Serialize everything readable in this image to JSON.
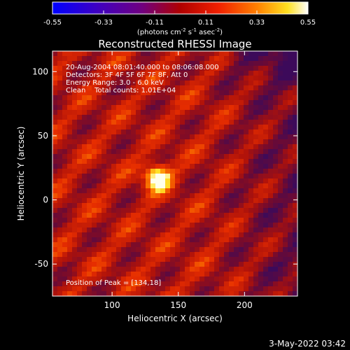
{
  "colorbar": {
    "ticks": [
      "-0.55",
      "-0.33",
      "-0.11",
      "0.11",
      "0.33",
      "0.55"
    ],
    "unit_label": "(photons cm",
    "unit_exp1": "-2",
    "unit_mid": " s",
    "unit_exp2": "-1",
    "unit_tail": " asec",
    "unit_exp3": "-2",
    "unit_close": ")",
    "range": [
      -0.55,
      0.55
    ]
  },
  "chart_data": {
    "type": "heatmap",
    "title": "Reconstructed RHESSI Image",
    "xlabel": "Heliocentric X (arcsec)",
    "ylabel": "Heliocentric Y (arcsec)",
    "xlim": [
      55,
      240
    ],
    "ylim": [
      -75,
      116
    ],
    "x_ticks": [
      100,
      150,
      200
    ],
    "y_ticks": [
      -50,
      0,
      50,
      100
    ],
    "peak_position": [
      134,
      18
    ],
    "annotations": {
      "time": "20-Aug-2004 08:01:40.000 to 08:06:08.000",
      "detectors": "Detectors: 3F 4F 5F 6F 7F 8F, Att 0",
      "energy": "Energy Range: 3.0 - 6.0 keV",
      "method": "Clean    Total counts: 1.01E+04",
      "peak": "Position of Peak = [134,18]"
    }
  },
  "footer": {
    "timestamp": "3-May-2022 03:42"
  }
}
